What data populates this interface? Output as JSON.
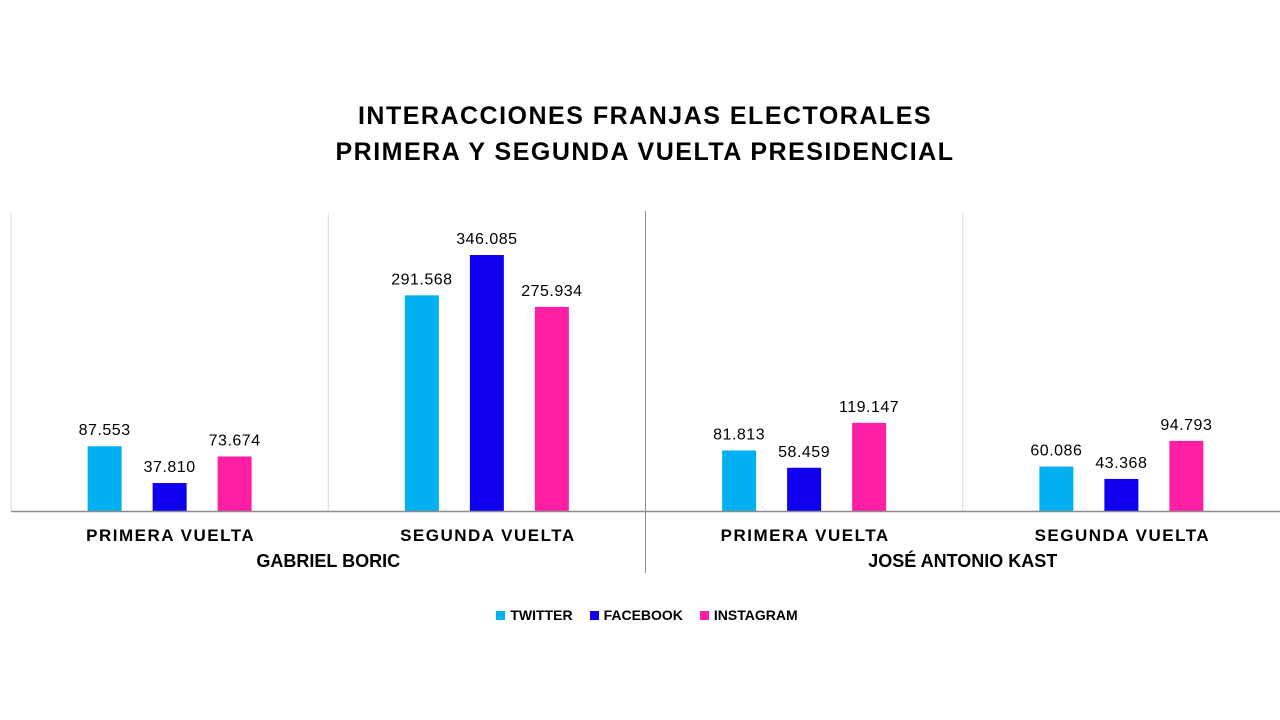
{
  "chart_data": {
    "type": "bar",
    "title_lines": [
      "INTERACCIONES FRANJAS ELECTORALES",
      "PRIMERA Y SEGUNDA VUELTA PRESIDENCIAL"
    ],
    "groups": [
      {
        "label": "GABRIEL BORIC",
        "categories": [
          "PRIMERA VUELTA",
          "SEGUNDA VUELTA"
        ]
      },
      {
        "label": "JOSÉ ANTONIO KAST",
        "categories": [
          "PRIMERA VUELTA",
          "SEGUNDA VUELTA"
        ]
      }
    ],
    "series": [
      {
        "name": "TWITTER",
        "color": "#00B0F0",
        "values": [
          87553,
          291568,
          81813,
          60086
        ],
        "labels": [
          "87.553",
          "291.568",
          "81.813",
          "60.086"
        ]
      },
      {
        "name": "FACEBOOK",
        "color": "#1000F0",
        "values": [
          37810,
          346085,
          58459,
          43368
        ],
        "labels": [
          "37.810",
          "346.085",
          "58.459",
          "43.368"
        ]
      },
      {
        "name": "INSTAGRAM",
        "color": "#FF1FA5",
        "values": [
          73674,
          275934,
          119147,
          94793
        ],
        "labels": [
          "73.674",
          "275.934",
          "119.147",
          "94.793"
        ]
      }
    ],
    "ylim": [
      0,
      400000
    ],
    "grid": false,
    "legend_position": "bottom"
  }
}
